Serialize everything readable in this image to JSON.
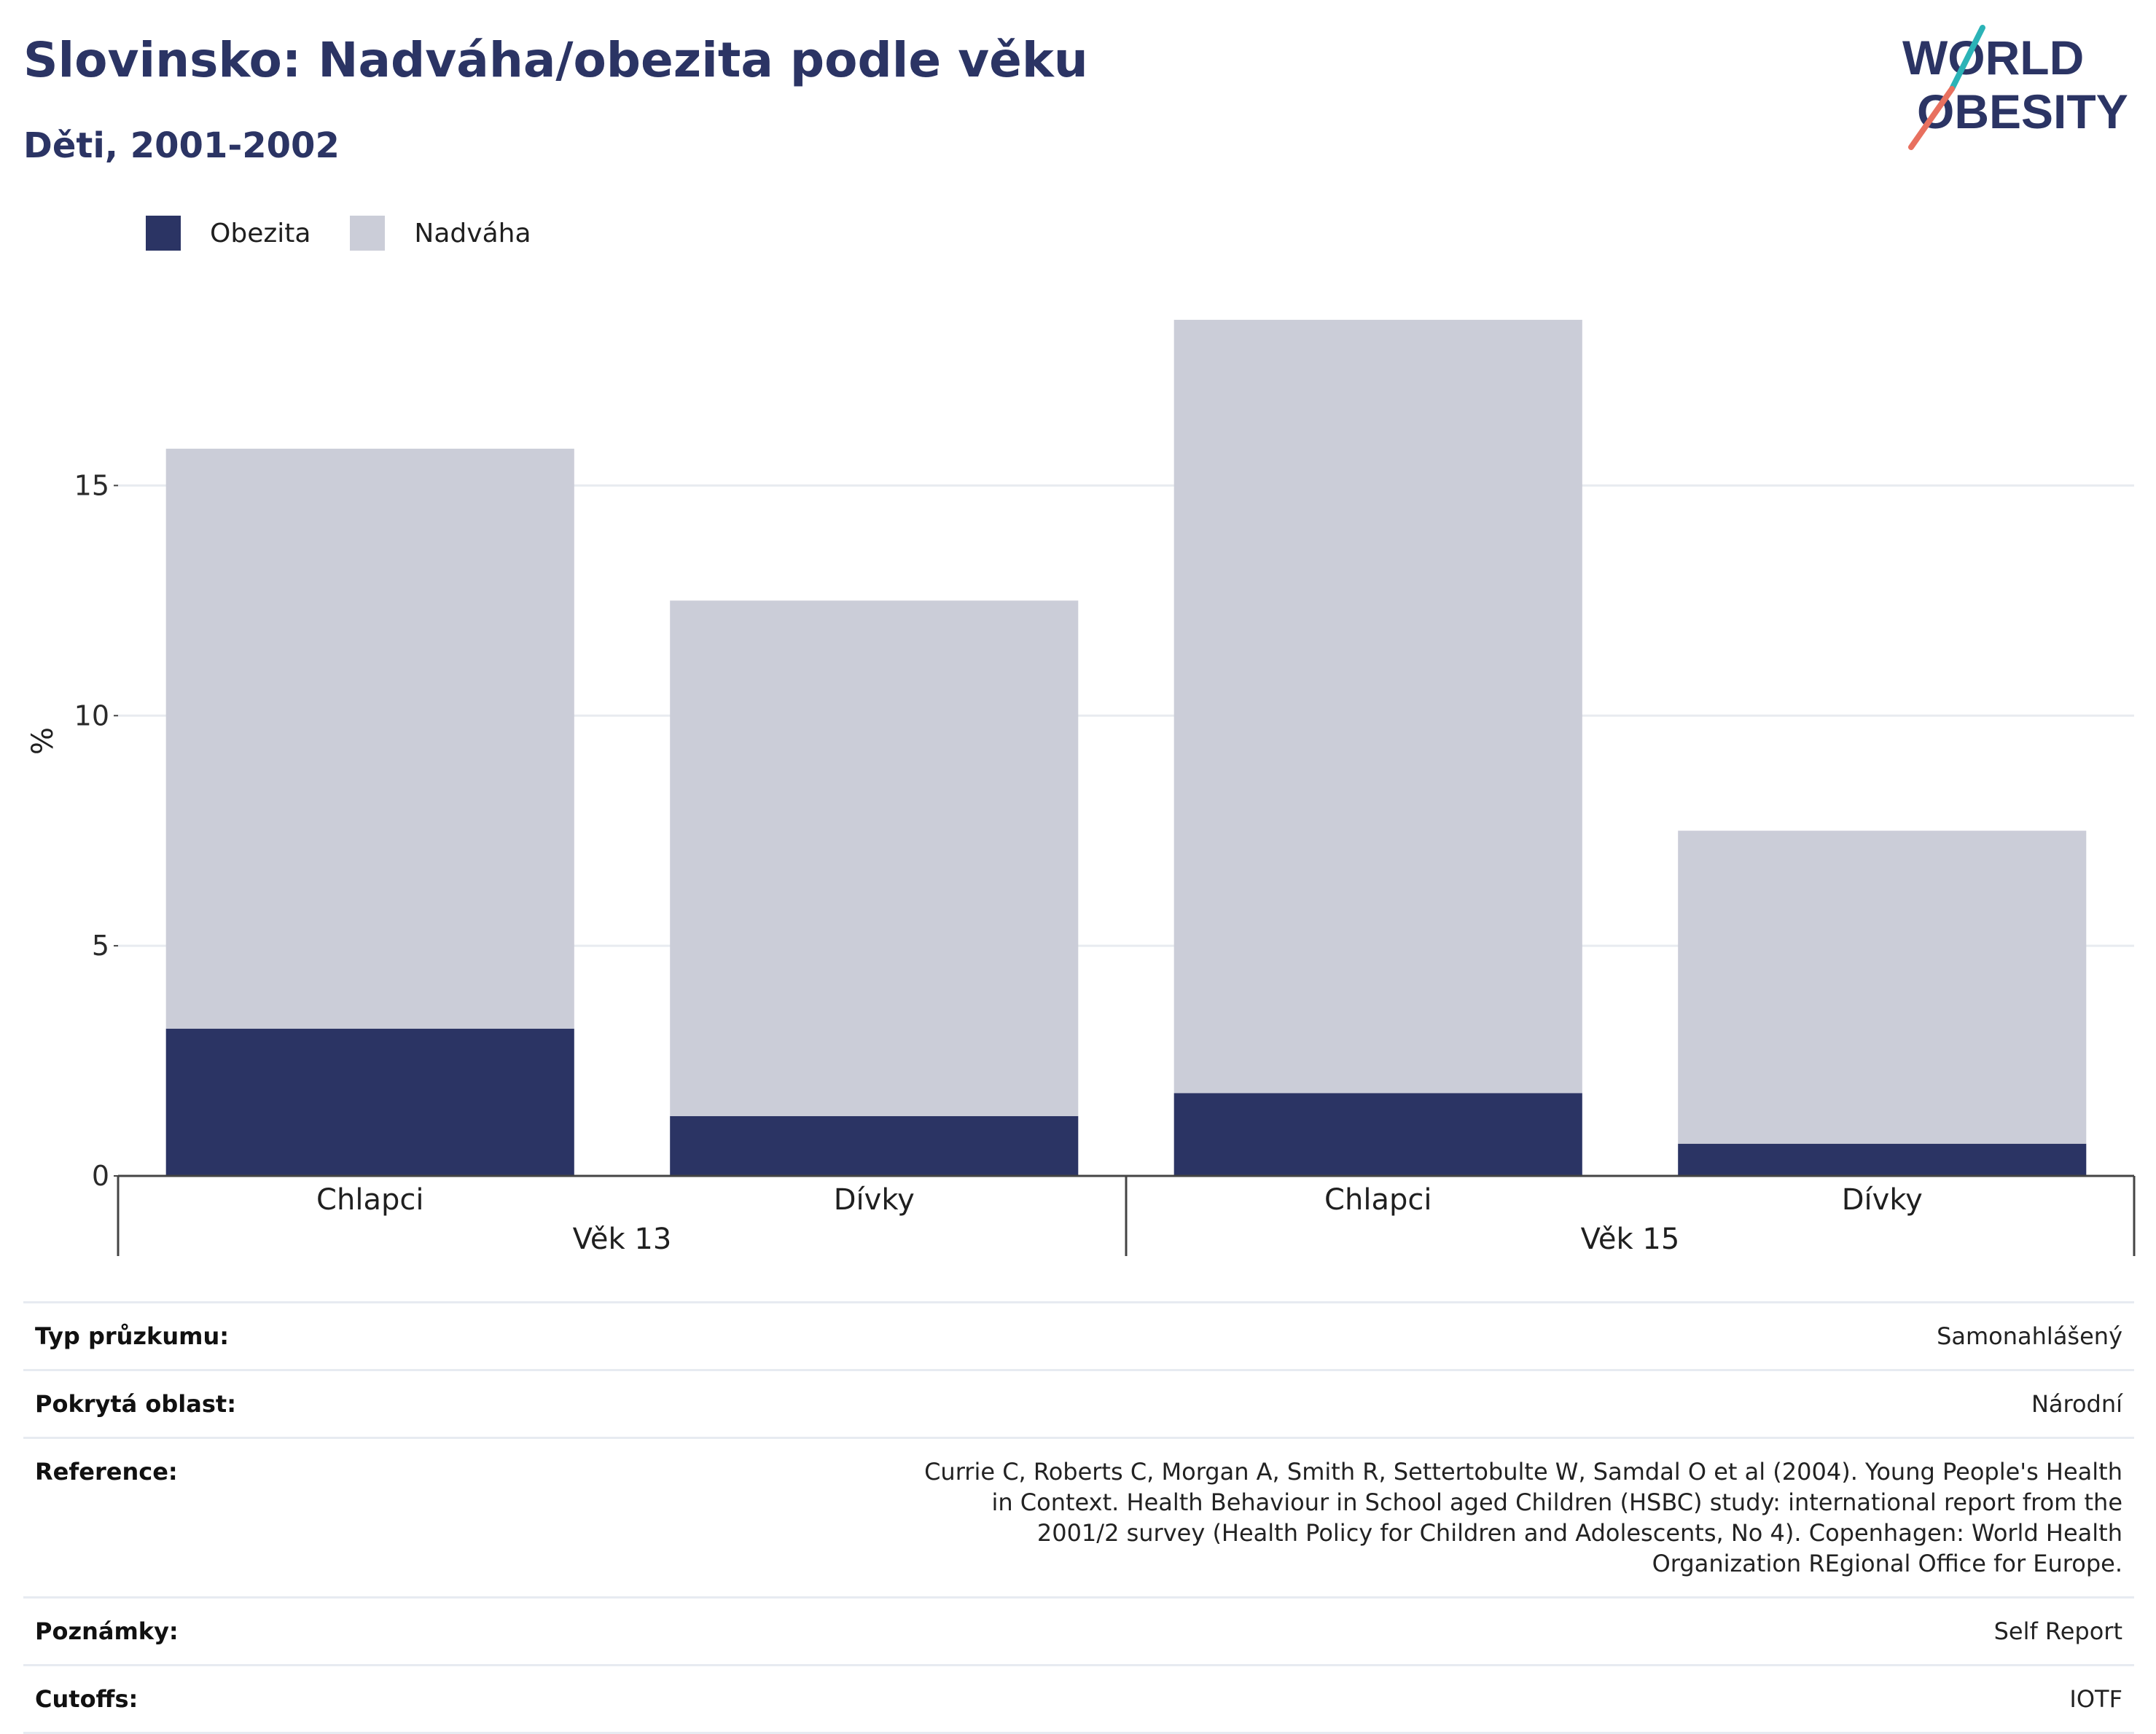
{
  "title": "Slovinsko: Nadváha/obezita podle věku",
  "subtitle": "Děti, 2001-2002",
  "logo": {
    "line1": "WORLD",
    "line2": "OBESITY"
  },
  "colors": {
    "obesity": "#2b3464",
    "overweight": "#cbcdd8",
    "title": "#2b3464",
    "logo_teal": "#2bb3b7",
    "logo_coral": "#e8705f"
  },
  "legend": [
    {
      "label": "Obezita",
      "color": "#2b3464"
    },
    {
      "label": "Nadváha",
      "color": "#cbcdd8"
    }
  ],
  "chart_data": {
    "type": "bar",
    "stacked": true,
    "ylabel": "%",
    "ylim": [
      0,
      18.9
    ],
    "yticks": [
      0,
      5,
      10,
      15
    ],
    "grid": true,
    "legend_position": "top-left",
    "groups": [
      {
        "label": "Věk 13",
        "categories": [
          "Chlapci",
          "Dívky"
        ]
      },
      {
        "label": "Věk 15",
        "categories": [
          "Chlapci",
          "Dívky"
        ]
      }
    ],
    "categories": [
      "Chlapci",
      "Dívky",
      "Chlapci",
      "Dívky"
    ],
    "series": [
      {
        "name": "Obezita",
        "values": [
          3.2,
          1.3,
          1.8,
          0.7
        ]
      },
      {
        "name": "Nadváha",
        "values": [
          12.6,
          11.2,
          16.8,
          6.8
        ]
      }
    ]
  },
  "info": [
    {
      "key": "Typ průzkumu:",
      "value": "Samonahlášený"
    },
    {
      "key": "Pokrytá oblast:",
      "value": "Národní"
    },
    {
      "key": "Reference:",
      "value": "Currie C, Roberts C, Morgan A, Smith R, Settertobulte W, Samdal O et al (2004). Young People's Health in Context. Health Behaviour in School aged Children (HSBC) study: international report from the 2001/2 survey (Health Policy for Children and Adolescents, No 4). Copenhagen: World Health Organization REgional Office for Europe."
    },
    {
      "key": "Poznámky:",
      "value": "Self Report"
    },
    {
      "key": "Cutoffs:",
      "value": "IOTF"
    }
  ]
}
